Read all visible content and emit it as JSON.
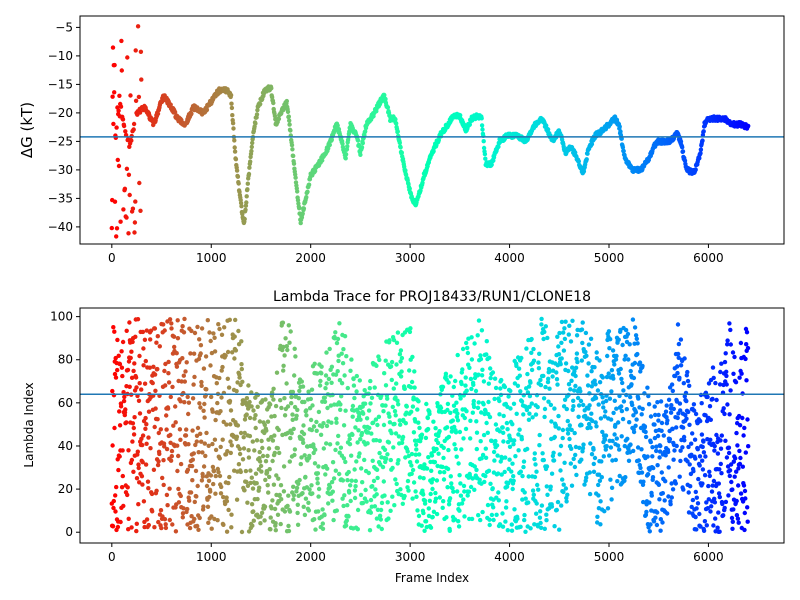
{
  "chart_data": [
    {
      "type": "scatter",
      "title": "",
      "xlabel": "",
      "ylabel": "ΔG (kT)",
      "xlim": [
        -320,
        6760
      ],
      "ylim": [
        -43,
        -3
      ],
      "xticks": [
        0,
        1000,
        2000,
        3000,
        4000,
        5000,
        6000
      ],
      "yticks": [
        -40,
        -35,
        -30,
        -25,
        -20,
        -15,
        -10,
        -5
      ],
      "hline": -24.2,
      "hline_color": "#1f77b4",
      "colormap": "rainbow (reversed: frame 0 red, last frame violet)",
      "x_max": 6400,
      "trace_keypoints": [
        [
          0,
          -20
        ],
        [
          40,
          -24
        ],
        [
          80,
          -18
        ],
        [
          120,
          -22
        ],
        [
          180,
          -26
        ],
        [
          250,
          -20
        ],
        [
          330,
          -19
        ],
        [
          420,
          -22
        ],
        [
          520,
          -17
        ],
        [
          600,
          -19
        ],
        [
          660,
          -21
        ],
        [
          740,
          -22
        ],
        [
          820,
          -19
        ],
        [
          920,
          -20
        ],
        [
          1000,
          -18
        ],
        [
          1080,
          -16
        ],
        [
          1160,
          -16
        ],
        [
          1200,
          -17
        ],
        [
          1240,
          -27
        ],
        [
          1290,
          -35
        ],
        [
          1330,
          -39.5
        ],
        [
          1370,
          -32
        ],
        [
          1420,
          -24
        ],
        [
          1470,
          -19
        ],
        [
          1540,
          -16
        ],
        [
          1600,
          -15.5
        ],
        [
          1650,
          -22
        ],
        [
          1700,
          -20
        ],
        [
          1760,
          -18
        ],
        [
          1800,
          -24
        ],
        [
          1850,
          -32
        ],
        [
          1900,
          -39
        ],
        [
          1950,
          -35
        ],
        [
          2000,
          -31
        ],
        [
          2080,
          -29
        ],
        [
          2150,
          -27
        ],
        [
          2200,
          -25
        ],
        [
          2260,
          -22
        ],
        [
          2300,
          -24
        ],
        [
          2350,
          -28
        ],
        [
          2400,
          -22
        ],
        [
          2460,
          -24
        ],
        [
          2500,
          -27
        ],
        [
          2560,
          -22
        ],
        [
          2640,
          -20
        ],
        [
          2700,
          -18
        ],
        [
          2740,
          -17
        ],
        [
          2800,
          -21
        ],
        [
          2850,
          -21
        ],
        [
          2900,
          -26
        ],
        [
          2960,
          -31
        ],
        [
          3020,
          -35
        ],
        [
          3060,
          -36
        ],
        [
          3140,
          -31
        ],
        [
          3220,
          -27
        ],
        [
          3300,
          -24
        ],
        [
          3380,
          -22
        ],
        [
          3440,
          -20.5
        ],
        [
          3500,
          -20.5
        ],
        [
          3560,
          -23
        ],
        [
          3620,
          -21
        ],
        [
          3680,
          -20.5
        ],
        [
          3720,
          -21
        ],
        [
          3760,
          -29
        ],
        [
          3820,
          -29
        ],
        [
          3900,
          -25
        ],
        [
          3980,
          -24
        ],
        [
          4080,
          -24
        ],
        [
          4160,
          -25
        ],
        [
          4260,
          -22
        ],
        [
          4320,
          -21
        ],
        [
          4380,
          -23
        ],
        [
          4440,
          -25
        ],
        [
          4500,
          -23
        ],
        [
          4560,
          -27
        ],
        [
          4620,
          -26
        ],
        [
          4680,
          -28
        ],
        [
          4740,
          -30.5
        ],
        [
          4800,
          -26
        ],
        [
          4860,
          -24
        ],
        [
          4940,
          -23
        ],
        [
          5000,
          -22
        ],
        [
          5060,
          -21
        ],
        [
          5100,
          -22
        ],
        [
          5160,
          -28
        ],
        [
          5240,
          -30
        ],
        [
          5320,
          -30
        ],
        [
          5400,
          -28
        ],
        [
          5480,
          -25
        ],
        [
          5560,
          -25
        ],
        [
          5620,
          -25
        ],
        [
          5680,
          -23.5
        ],
        [
          5720,
          -25
        ],
        [
          5780,
          -30
        ],
        [
          5860,
          -30.5
        ],
        [
          5920,
          -27
        ],
        [
          5960,
          -22
        ],
        [
          6000,
          -21
        ],
        [
          6080,
          -21
        ],
        [
          6160,
          -21
        ],
        [
          6240,
          -22
        ],
        [
          6320,
          -22
        ],
        [
          6400,
          -22.5
        ]
      ],
      "early_scatter_range": [
        -42,
        -4
      ]
    },
    {
      "type": "scatter",
      "title": "Lambda Trace for PROJ18433/RUN1/CLONE18",
      "xlabel": "Frame Index",
      "ylabel": "Lambda Index",
      "xlim": [
        -320,
        6760
      ],
      "ylim": [
        -5,
        104
      ],
      "xticks": [
        0,
        1000,
        2000,
        3000,
        4000,
        5000,
        6000
      ],
      "yticks": [
        0,
        20,
        40,
        60,
        80,
        100
      ],
      "hline": 64,
      "hline_color": "#1f77b4",
      "colormap": "rainbow (reversed: frame 0 red, last frame violet)",
      "x_max": 6400,
      "range_keypoints": [
        [
          0,
          0,
          99
        ],
        [
          250,
          0,
          99
        ],
        [
          500,
          0,
          99
        ],
        [
          800,
          0,
          99
        ],
        [
          1100,
          0,
          99
        ],
        [
          1300,
          0,
          99
        ],
        [
          1350,
          0,
          70
        ],
        [
          1500,
          0,
          65
        ],
        [
          1600,
          0,
          60
        ],
        [
          1700,
          0,
          99
        ],
        [
          1800,
          0,
          99
        ],
        [
          1900,
          0,
          70
        ],
        [
          2100,
          0,
          85
        ],
        [
          2300,
          0,
          99
        ],
        [
          2500,
          0,
          70
        ],
        [
          2700,
          0,
          85
        ],
        [
          2900,
          10,
          99
        ],
        [
          3000,
          20,
          99
        ],
        [
          3100,
          0,
          55
        ],
        [
          3300,
          0,
          70
        ],
        [
          3500,
          0,
          85
        ],
        [
          3700,
          5,
          99
        ],
        [
          3900,
          0,
          70
        ],
        [
          4100,
          0,
          85
        ],
        [
          4300,
          0,
          99
        ],
        [
          4500,
          0,
          99
        ],
        [
          4700,
          30,
          99
        ],
        [
          4900,
          0,
          90
        ],
        [
          5100,
          20,
          99
        ],
        [
          5250,
          30,
          99
        ],
        [
          5400,
          0,
          65
        ],
        [
          5550,
          0,
          60
        ],
        [
          5700,
          25,
          99
        ],
        [
          5850,
          0,
          60
        ],
        [
          6000,
          0,
          70
        ],
        [
          6200,
          0,
          99
        ],
        [
          6400,
          0,
          97
        ]
      ]
    }
  ]
}
